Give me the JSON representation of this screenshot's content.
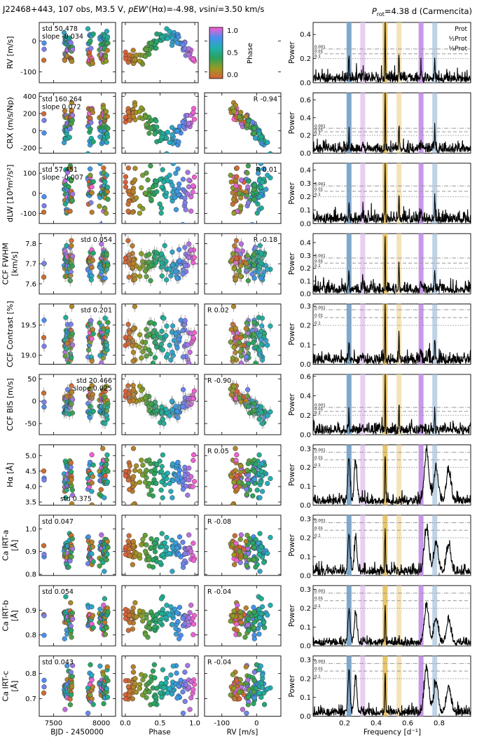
{
  "header": {
    "title_parts": [
      "J22468+443, 107 obs, M3.5 V, ",
      "pEW'",
      "(Hα)=-4.98, ",
      "v",
      "sin",
      "i",
      "=3.50 km/s"
    ],
    "prot_parts": [
      "P",
      "rot",
      "=4.38 d (Carmencita)"
    ]
  },
  "colorbar": {
    "label": "Phase",
    "ticks": [
      "1.0",
      "0.5",
      "0.0"
    ],
    "colors": [
      "#ff5ccf",
      "#4a8ef0",
      "#20b0b0",
      "#2aa35a",
      "#9a9a22",
      "#d8603a"
    ]
  },
  "legend": {
    "prot": "Prot",
    "half": "½Prot",
    "third": "⅓Prot"
  },
  "axes_labels": {
    "time": "BJD - 2450000",
    "phase": "Phase",
    "rv": "RV [m/s]",
    "freq": "Frequency [d⁻¹]",
    "power": "Power"
  },
  "time_ticks": [
    "7500",
    "8000"
  ],
  "phase_ticks": [
    "0.0",
    "0.5",
    "1.0"
  ],
  "rv_ticks": [
    "-100",
    "0"
  ],
  "freq_ticks": [
    "0.2",
    "0.4",
    "0.6",
    "0.8"
  ],
  "fap_labels": [
    "0.001",
    "0.01",
    "0.1"
  ],
  "rows": [
    {
      "ylabel": [
        "RV [m/s]"
      ],
      "ticks": [
        "0",
        "-100"
      ],
      "stats": [
        "std 50.478",
        "slope -0.034"
      ],
      "corr": "",
      "ptick": [
        "0.4",
        "0.2",
        "0.0"
      ]
    },
    {
      "ylabel": [
        "CRX (m/s/Np)"
      ],
      "ticks": [
        "400",
        "200",
        "0",
        "-200"
      ],
      "stats": [
        "std 160.264",
        "slope 0.072"
      ],
      "corr": "R -0.94",
      "ptick": [
        "0.6",
        "0.4",
        "0.2",
        "0.0"
      ]
    },
    {
      "ylabel": [
        "dLW [10³m²/s²]"
      ],
      "ticks": [
        "100",
        "0",
        "-100"
      ],
      "stats": [
        "std 57.451",
        "slope -0.007"
      ],
      "corr": "R 0.01",
      "ptick": [
        "0.4",
        "0.3",
        "0.2",
        "0.1",
        "0.0"
      ]
    },
    {
      "ylabel": [
        "CCF FWHM",
        "[km/s]"
      ],
      "ticks": [
        "7.8",
        "7.7",
        "7.6"
      ],
      "stats": [
        "std 0.054"
      ],
      "corr": "R -0.18",
      "ptick": [
        "0.4",
        "0.3",
        "0.2",
        "0.1",
        "0.0"
      ]
    },
    {
      "ylabel": [
        "CCF Contrast [%]"
      ],
      "ticks": [
        "19.5",
        "19.0"
      ],
      "stats": [
        "std 0.201"
      ],
      "corr": "R 0.02",
      "ptick": [
        "0.3",
        "0.2",
        "0.1",
        "0.0"
      ]
    },
    {
      "ylabel": [
        "CCF BIS [m/s]"
      ],
      "ticks": [
        "50",
        "0",
        "-50"
      ],
      "stats": [
        "std 20.466",
        "slope 0.025"
      ],
      "corr": "R -0.90",
      "ptick": [
        "0.6",
        "0.4",
        "0.2",
        "0.0"
      ]
    },
    {
      "ylabel": [
        "Hα [Å]"
      ],
      "ticks": [
        "5.0",
        "4.5",
        "4.0",
        "3.5"
      ],
      "stats": [
        "std 0.375"
      ],
      "corr": "R 0.05",
      "ptick": [
        "0.3",
        "0.2",
        "0.1",
        "0.0"
      ]
    },
    {
      "ylabel": [
        "Ca IRT-a",
        "[Å]"
      ],
      "ticks": [
        "1.0",
        "0.9",
        "0.8"
      ],
      "stats": [
        "std 0.047"
      ],
      "corr": "R -0.08",
      "ptick": [
        "0.3",
        "0.2",
        "0.1",
        "0.0"
      ]
    },
    {
      "ylabel": [
        "Ca IRT-b",
        "[Å]"
      ],
      "ticks": [
        "0.9",
        "0.8"
      ],
      "stats": [
        "std 0.054"
      ],
      "corr": "R -0.04",
      "ptick": [
        "0.3",
        "0.2",
        "0.1",
        "0.0"
      ]
    },
    {
      "ylabel": [
        "Ca IRT-c",
        "[Å]"
      ],
      "ticks": [
        "0.8",
        "0.7"
      ],
      "stats": [
        "std 0.043"
      ],
      "corr": "R -0.04",
      "ptick": [
        "0.3",
        "0.2",
        "0.1",
        "0.0"
      ]
    }
  ],
  "chart_data": {
    "type": "scatter",
    "title": "J22468+443, 107 obs, M3.5 V, pEW'(Hα)=-4.98, vsini=3.50 km/s",
    "subtitle": "Prot=4.38 d (Carmencita)",
    "n_obs": 107,
    "prot_days": 4.38,
    "freq_markers": {
      "prot": 0.228,
      "half_prot": 0.457,
      "third_prot": 0.685
    },
    "freq_alias": [
      0.315,
      0.545,
      0.772
    ],
    "xlim_time": [
      7350,
      8150
    ],
    "xlim_phase": [
      -0.05,
      1.05
    ],
    "xlim_rv": [
      -150,
      70
    ],
    "xlim_freq": [
      0.0,
      1.0
    ],
    "series": [
      {
        "name": "RV",
        "unit": "m/s",
        "ylim": [
          -135,
          60
        ],
        "std": 50.478,
        "slope": -0.034,
        "pmax": 0.5,
        "peak": 0.47
      },
      {
        "name": "CRX",
        "unit": "m/s/Np",
        "ylim": [
          -260,
          440
        ],
        "std": 160.264,
        "slope": 0.072,
        "R": -0.94,
        "pmax": 0.68,
        "peak": 0.62
      },
      {
        "name": "dLW",
        "unit": "10^3 m^2/s^2",
        "ylim": [
          -150,
          150
        ],
        "std": 57.451,
        "slope": -0.007,
        "R": 0.01,
        "pmax": 0.45,
        "peak": 0.42
      },
      {
        "name": "CCF FWHM",
        "unit": "km/s",
        "ylim": [
          7.55,
          7.85
        ],
        "std": 0.054,
        "R": -0.18,
        "pmax": 0.47,
        "peak": 0.44
      },
      {
        "name": "CCF Contrast",
        "unit": "%",
        "ylim": [
          18.85,
          19.85
        ],
        "std": 0.201,
        "R": 0.02,
        "pmax": 0.31,
        "peak": 0.3
      },
      {
        "name": "CCF BIS",
        "unit": "m/s",
        "ylim": [
          -75,
          60
        ],
        "std": 20.466,
        "slope": 0.025,
        "R": -0.9,
        "pmax": 0.62,
        "peak": 0.57
      },
      {
        "name": "Halpha",
        "unit": "A",
        "ylim": [
          3.4,
          5.35
        ],
        "std": 0.375,
        "R": 0.05,
        "pmax": 0.32,
        "peak": 0.29
      },
      {
        "name": "Ca IRT-a",
        "unit": "A",
        "ylim": [
          0.795,
          1.06
        ],
        "std": 0.047,
        "R": -0.08,
        "pmax": 0.32,
        "peak": 0.26
      },
      {
        "name": "Ca IRT-b",
        "unit": "A",
        "ylim": [
          0.755,
          1.0
        ],
        "std": 0.054,
        "R": -0.04,
        "pmax": 0.32,
        "peak": 0.22
      },
      {
        "name": "Ca IRT-c",
        "unit": "A",
        "ylim": [
          0.63,
          0.87
        ],
        "std": 0.043,
        "R": -0.04,
        "pmax": 0.32,
        "peak": 0.26
      }
    ]
  }
}
